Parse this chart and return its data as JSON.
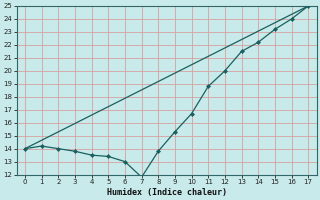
{
  "xlabel": "Humidex (Indice chaleur)",
  "bg_color": "#c8eaea",
  "grid_color": "#d8a0a0",
  "line_color": "#1a6060",
  "xlim": [
    -0.5,
    17.5
  ],
  "ylim": [
    12,
    25
  ],
  "xticks": [
    0,
    1,
    2,
    3,
    4,
    5,
    6,
    7,
    8,
    9,
    10,
    11,
    12,
    13,
    14,
    15,
    16,
    17
  ],
  "yticks": [
    12,
    13,
    14,
    15,
    16,
    17,
    18,
    19,
    20,
    21,
    22,
    23,
    24,
    25
  ],
  "line1_x": [
    0,
    1,
    2,
    3,
    4,
    5,
    6,
    7,
    8,
    9,
    10,
    11,
    12,
    13,
    14,
    15,
    16,
    17
  ],
  "line1_y": [
    14.0,
    14.2,
    14.0,
    13.8,
    13.5,
    13.4,
    13.0,
    11.8,
    13.8,
    15.3,
    16.7,
    18.8,
    20.0,
    21.5,
    22.2,
    23.2,
    24.0,
    25.0
  ],
  "line2_x": [
    0,
    17
  ],
  "line2_y": [
    14.0,
    25.0
  ]
}
